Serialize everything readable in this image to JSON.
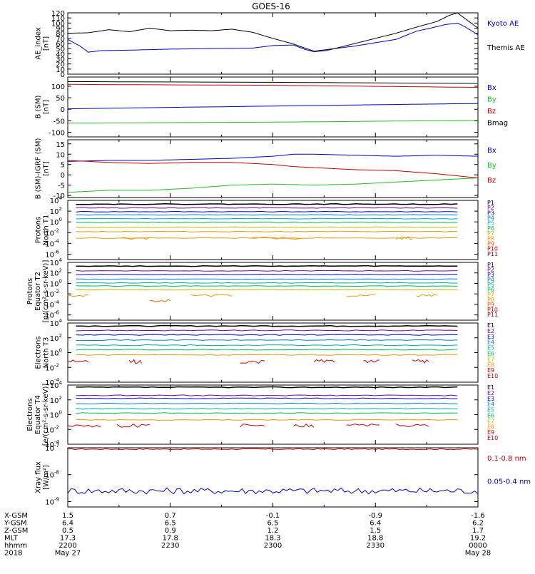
{
  "title": "GOES-16",
  "chart_data": [
    {
      "type": "line",
      "ylabel": [
        "AE_index",
        "[nT]"
      ],
      "ylim": [
        0,
        120
      ],
      "yticks": [
        0,
        10,
        20,
        30,
        40,
        50,
        60,
        70,
        80,
        90,
        100,
        110,
        120
      ],
      "ytick_labels": [
        "0",
        "10",
        "20",
        "30",
        "40",
        "50",
        "60",
        "70",
        "80",
        "90",
        "100",
        "110",
        "120"
      ],
      "legend": [
        "Kyoto AE",
        "Themis AE"
      ],
      "legend_colors": [
        "#0000cc",
        "#000000"
      ],
      "series": [
        {
          "name": "Kyoto AE",
          "color": "#0000cc",
          "x": [
            0,
            0.03,
            0.05,
            0.08,
            0.15,
            0.25,
            0.35,
            0.45,
            0.5,
            0.55,
            0.58,
            0.6,
            0.63,
            0.65,
            0.7,
            0.8,
            0.85,
            0.9,
            0.92,
            0.95,
            0.97,
            1.0
          ],
          "y": [
            68,
            55,
            43,
            46,
            47,
            49,
            50,
            51,
            56,
            57,
            48,
            44,
            46,
            50,
            55,
            68,
            84,
            93,
            97,
            100,
            92,
            77
          ]
        },
        {
          "name": "Themis AE",
          "color": "#000000",
          "x": [
            0,
            0.05,
            0.1,
            0.15,
            0.2,
            0.25,
            0.3,
            0.35,
            0.4,
            0.45,
            0.5,
            0.55,
            0.6,
            0.65,
            0.7,
            0.75,
            0.8,
            0.85,
            0.9,
            0.93,
            0.95,
            1.0
          ],
          "y": [
            80,
            81,
            87,
            83,
            90,
            85,
            86,
            85,
            88,
            82,
            70,
            59,
            45,
            50,
            60,
            70,
            80,
            92,
            103,
            115,
            120,
            90
          ]
        }
      ]
    },
    {
      "type": "line",
      "ylabel": [
        "B (SM)",
        "[nT]"
      ],
      "ylim": [
        -120,
        140
      ],
      "yticks": [
        -100,
        -50,
        0,
        50,
        100
      ],
      "ytick_labels": [
        "-100",
        "-50",
        "0",
        "50",
        "100"
      ],
      "legend": [
        "Bx",
        "By",
        "Bz",
        "Bmag"
      ],
      "legend_colors": [
        "#0000cc",
        "#22bb22",
        "#cc0000",
        "#000000"
      ],
      "series": [
        {
          "name": "Bx",
          "color": "#0000cc",
          "x": [
            0,
            0.5,
            1.0
          ],
          "y": [
            2,
            14,
            25
          ]
        },
        {
          "name": "By",
          "color": "#22bb22",
          "x": [
            0,
            0.5,
            1.0
          ],
          "y": [
            -60,
            -56,
            -48
          ]
        },
        {
          "name": "Bz",
          "color": "#cc0000",
          "x": [
            0,
            0.5,
            1.0
          ],
          "y": [
            108,
            104,
            95
          ]
        },
        {
          "name": "Bmag",
          "color": "#000000",
          "x": [
            0,
            0.5,
            1.0
          ],
          "y": [
            120,
            117,
            112
          ]
        }
      ]
    },
    {
      "type": "line",
      "ylabel": [
        "B (SM)-IGRF (SM)",
        "[nT]"
      ],
      "ylim": [
        -11,
        17
      ],
      "yticks": [
        -10,
        -5,
        0,
        5,
        10,
        15
      ],
      "ytick_labels": [
        "-10",
        "-5",
        "0",
        "5",
        "10",
        "15"
      ],
      "legend": [
        "Bx",
        "By",
        "Bz"
      ],
      "legend_colors": [
        "#0000cc",
        "#22bb22",
        "#cc0000"
      ],
      "series": [
        {
          "name": "Bx",
          "color": "#0000cc",
          "x": [
            0,
            0.1,
            0.2,
            0.3,
            0.4,
            0.5,
            0.55,
            0.6,
            0.7,
            0.8,
            0.9,
            1.0
          ],
          "y": [
            6.5,
            7,
            7,
            7.5,
            8,
            9,
            10,
            10,
            9.5,
            9,
            9.5,
            9
          ]
        },
        {
          "name": "By",
          "color": "#22bb22",
          "x": [
            0,
            0.1,
            0.2,
            0.3,
            0.4,
            0.5,
            0.6,
            0.7,
            0.8,
            0.9,
            1.0
          ],
          "y": [
            -8.5,
            -7.5,
            -7.5,
            -6.5,
            -5,
            -4.5,
            -5,
            -4.5,
            -3.5,
            -2.5,
            -1.5
          ]
        },
        {
          "name": "Bz",
          "color": "#cc0000",
          "x": [
            0,
            0.1,
            0.2,
            0.3,
            0.4,
            0.5,
            0.55,
            0.6,
            0.7,
            0.8,
            0.9,
            1.0
          ],
          "y": [
            7,
            6,
            5.5,
            6,
            6,
            5,
            4,
            3.5,
            2.5,
            2,
            0.5,
            -1.5
          ]
        }
      ]
    },
    {
      "type": "line",
      "scale": "log",
      "ylabel": [
        "Protons",
        "North T1"
      ],
      "ylim_exp": [
        -7,
        4
      ],
      "ytick_exps": [
        -6,
        -4,
        -2,
        0,
        2,
        4
      ],
      "legend": [
        "P1",
        "P2",
        "P3",
        "P4",
        "P5",
        "P6",
        "P7",
        "P8",
        "P9",
        "P10",
        "P11"
      ],
      "legend_colors": [
        "#000000",
        "#7a00a0",
        "#0000cc",
        "#0077dd",
        "#00aaaa",
        "#00bb55",
        "#bbbb00",
        "#ee9900",
        "#ee5500",
        "#cc0000",
        "#990000"
      ],
      "levels_exp": [
        3.3,
        2.6,
        1.9,
        1.3,
        0.6,
        -0.1,
        -1,
        -1.8,
        -3
      ],
      "level_colors": [
        "#000000",
        "#7a00a0",
        "#0000cc",
        "#0077dd",
        "#00aaaa",
        "#00bb55",
        "#bbbb00",
        "#ee9900",
        "#ee9900"
      ],
      "segments": [
        {
          "color": "#ee9900",
          "exp": -3,
          "x": [
            [
              0.13,
              0.2
            ],
            [
              0.45,
              0.57
            ],
            [
              0.8,
              0.84
            ]
          ]
        }
      ]
    },
    {
      "type": "line",
      "scale": "log",
      "ylabel": [
        "Protons",
        "Equator T2",
        "[p/(cm²-s-sr-keV)]"
      ],
      "ylim_exp": [
        -7,
        4
      ],
      "ytick_exps": [
        -6,
        -4,
        -2,
        0,
        2,
        4
      ],
      "legend": [
        "P1",
        "P2",
        "P3",
        "P4",
        "P5",
        "P6",
        "P7",
        "P8",
        "P9",
        "P10",
        "P11"
      ],
      "legend_colors": [
        "#000000",
        "#7a00a0",
        "#0000cc",
        "#0077dd",
        "#00aaaa",
        "#00bb55",
        "#bbbb00",
        "#ee9900",
        "#ee5500",
        "#cc0000",
        "#990000"
      ],
      "levels_exp": [
        3.3,
        2.4,
        1.7,
        0.8,
        0.1,
        -0.5,
        -1.2
      ],
      "level_colors": [
        "#000000",
        "#7a00a0",
        "#0000cc",
        "#0077dd",
        "#00aaaa",
        "#00bb55",
        "#bbbb00"
      ],
      "segments": [
        {
          "color": "#ee9900",
          "exp": -2.3,
          "x": [
            [
              0,
              0.05
            ],
            [
              0.3,
              0.4
            ],
            [
              0.68,
              0.75
            ],
            [
              0.85,
              0.9
            ]
          ]
        },
        {
          "color": "#ee5500",
          "exp": -3.3,
          "x": [
            [
              0.2,
              0.25
            ]
          ]
        }
      ]
    },
    {
      "type": "line",
      "scale": "log",
      "ylabel": [
        "Electrons",
        "North T3"
      ],
      "ylim_exp": [
        -4,
        4
      ],
      "ytick_exps": [
        -4,
        -2,
        0,
        2,
        4
      ],
      "legend": [
        "E1",
        "E2",
        "E3",
        "E4",
        "E5",
        "E6",
        "E7",
        "E8",
        "E9",
        "E10"
      ],
      "legend_colors": [
        "#000000",
        "#7a00a0",
        "#0000cc",
        "#0077dd",
        "#00aaaa",
        "#00bb55",
        "#bbbb00",
        "#ee9900",
        "#cc0000",
        "#990000"
      ],
      "levels_exp": [
        3.6,
        3.0,
        2.4,
        1.7,
        1.0,
        0.4,
        -0.3
      ],
      "level_colors": [
        "#000000",
        "#7a00a0",
        "#0000cc",
        "#0077dd",
        "#00aaaa",
        "#00bb55",
        "#ee9900"
      ],
      "segments": [
        {
          "color": "#cc0000",
          "exp": -1.2,
          "x": [
            [
              0,
              0.05
            ],
            [
              0.15,
              0.18
            ],
            [
              0.42,
              0.48
            ],
            [
              0.6,
              0.65
            ],
            [
              0.72,
              0.76
            ],
            [
              0.84,
              0.88
            ]
          ]
        }
      ]
    },
    {
      "type": "line",
      "scale": "log",
      "ylabel": [
        "Electrons",
        "Equator T4",
        "[e/(cm²-s-sr-keV)]"
      ],
      "ylim_exp": [
        -4,
        4
      ],
      "ytick_exps": [
        -4,
        -2,
        0,
        2,
        4
      ],
      "legend": [
        "E1",
        "E2",
        "E3",
        "E4",
        "E5",
        "E6",
        "E7",
        "E8",
        "E9",
        "E10"
      ],
      "legend_colors": [
        "#000000",
        "#7a00a0",
        "#0000cc",
        "#0077dd",
        "#00aaaa",
        "#00bb55",
        "#bbbb00",
        "#ee9900",
        "#cc0000",
        "#990000"
      ],
      "levels_exp": [
        3.7,
        2.6,
        2.2,
        1.5,
        0.8,
        0.2,
        -0.7
      ],
      "level_colors": [
        "#000000",
        "#7a00a0",
        "#0000cc",
        "#0077dd",
        "#00aaaa",
        "#00bb55",
        "#ee9900"
      ],
      "segments": [
        {
          "color": "#cc0000",
          "exp": -1.5,
          "x": [
            [
              0,
              0.08
            ],
            [
              0.12,
              0.2
            ],
            [
              0.42,
              0.48
            ],
            [
              0.55,
              0.6
            ],
            [
              0.68,
              0.76
            ],
            [
              0.8,
              0.88
            ]
          ]
        }
      ]
    },
    {
      "type": "line",
      "scale": "log",
      "ylabel": [
        "Xray flux",
        "[W/m²]"
      ],
      "ylim_exp": [
        -9.2,
        -7
      ],
      "ytick_exps": [
        -9,
        -8,
        -7
      ],
      "legend": [
        "0.1-0.8 nm",
        "0.05-0.4 nm"
      ],
      "legend_colors": [
        "#cc0000",
        "#0000cc"
      ],
      "series": [
        {
          "name": "0.1-0.8 nm",
          "color": "#cc0000",
          "exp": -7.05,
          "jitter": 0.02
        },
        {
          "name": "0.05-0.4 nm",
          "color": "#0000cc",
          "exp": -8.6,
          "jitter": 0.12
        }
      ]
    }
  ],
  "xaxis": {
    "rows": [
      {
        "label": "X-GSM",
        "values": [
          "1.5",
          "0.7",
          "-0.1",
          "-0.9",
          "-1.6"
        ]
      },
      {
        "label": "Y-GSM",
        "values": [
          "6.4",
          "6.5",
          "6.5",
          "6.4",
          "6.2"
        ]
      },
      {
        "label": "Z-GSM",
        "values": [
          "0.5",
          "0.9",
          "1.2",
          "1.5",
          "1.7"
        ]
      },
      {
        "label": "MLT",
        "values": [
          "17.3",
          "17.8",
          "18.3",
          "18.8",
          "19.2"
        ]
      },
      {
        "label": "hhmm",
        "values": [
          "2200",
          "2230",
          "2300",
          "2330",
          "0000"
        ]
      },
      {
        "label": "2018",
        "values": [
          "May 27",
          "",
          "",
          "",
          "May 28"
        ]
      }
    ]
  }
}
